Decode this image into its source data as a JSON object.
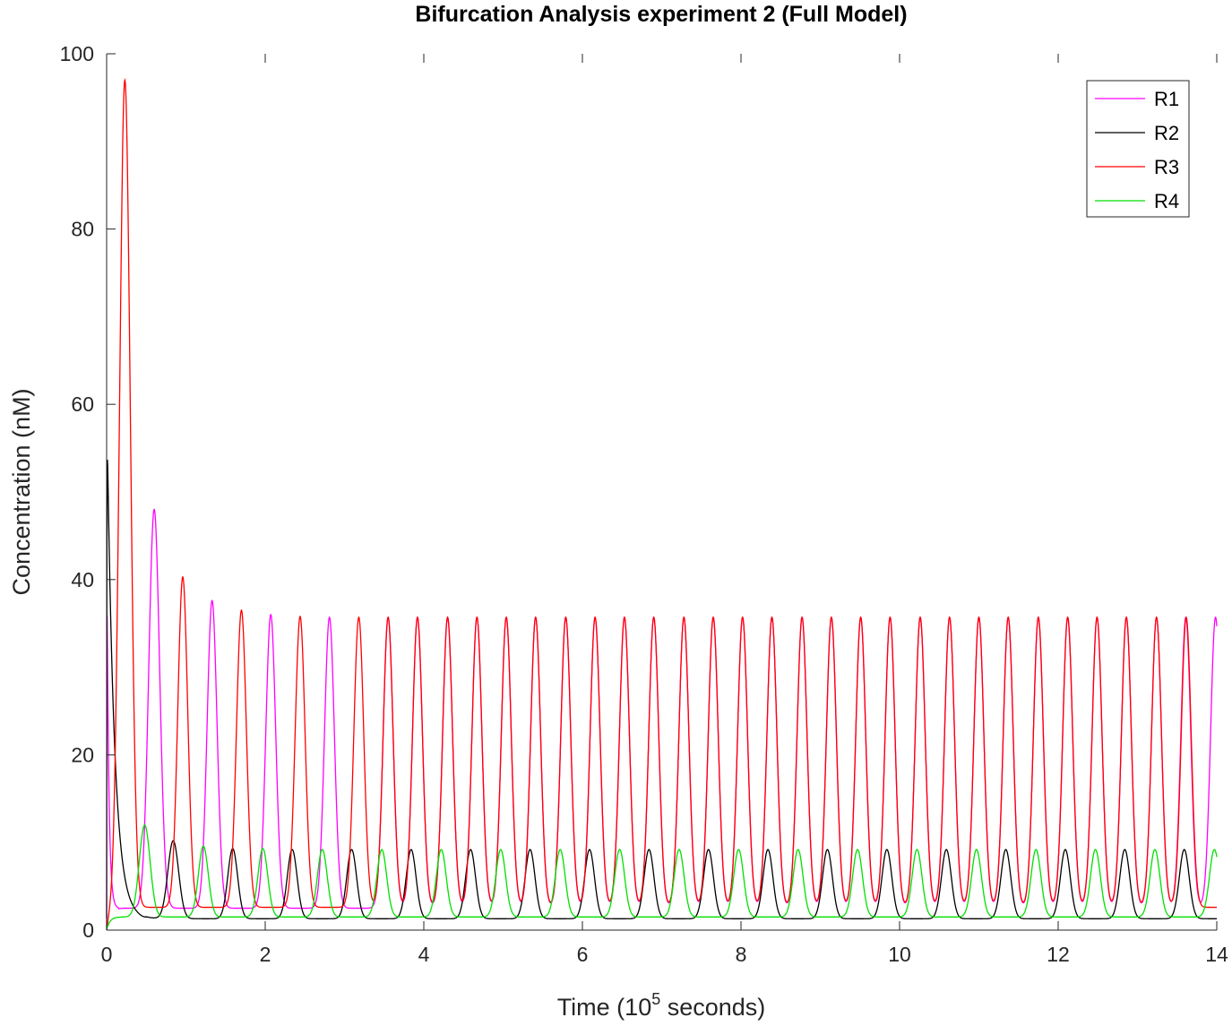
{
  "chart_data": {
    "type": "line",
    "title": "Bifurcation Analysis experiment 2 (Full Model)",
    "xlabel": {
      "pre": "Time (10",
      "sup": "5",
      "post": " seconds)"
    },
    "ylabel": "Concentration (nM)",
    "xlim": [
      0,
      14
    ],
    "ylim": [
      0,
      100
    ],
    "xticks": [
      0,
      2,
      4,
      6,
      8,
      10,
      12,
      14
    ],
    "yticks": [
      0,
      20,
      40,
      60,
      80,
      100
    ],
    "legend_position": "top-right",
    "period": 0.3745,
    "series": [
      {
        "name": "R1",
        "color": "#ff00ff",
        "peak_times": [
          0.6,
          1.33,
          2.07,
          2.81,
          3.55,
          3.92,
          4.3,
          4.67,
          5.04,
          5.41,
          5.79,
          6.16,
          6.53,
          6.9,
          7.28,
          7.65,
          8.02,
          8.39,
          8.77,
          9.14,
          9.51,
          9.88,
          10.26,
          10.63,
          11.0,
          11.37,
          11.75,
          12.12,
          12.49,
          12.86,
          13.24,
          13.61
        ],
        "peak_values": [
          48,
          37.6,
          36,
          35.7,
          35.7,
          35.7,
          35.7,
          35.7,
          35.7,
          35.7,
          35.7,
          35.7,
          35.7,
          35.7,
          35.7,
          35.7,
          35.7,
          35.7,
          35.7,
          35.7,
          35.7,
          35.7,
          35.7,
          35.7,
          35.7,
          35.7,
          35.7,
          35.7,
          35.7,
          35.7,
          35.7,
          35.7
        ],
        "trough": 2.5,
        "end_value": 27.5
      },
      {
        "name": "R2",
        "color": "#000000",
        "initial_peak": 62,
        "peak_times": [
          0.84,
          1.59,
          2.34,
          3.09,
          3.84,
          4.59,
          5.34,
          6.09,
          6.84,
          7.59,
          8.34,
          9.09,
          9.84,
          10.59,
          11.34,
          12.09,
          12.84,
          13.59
        ],
        "peak_values": [
          10.2,
          9.3,
          9.2,
          9.2,
          9.2,
          9.2,
          9.2,
          9.2,
          9.2,
          9.2,
          9.2,
          9.2,
          9.2,
          9.2,
          9.2,
          9.2,
          9.2,
          9.2
        ],
        "trough": 1.3,
        "end_value": 1.5
      },
      {
        "name": "R3",
        "color": "#ff0000",
        "peak_times": [
          0.23,
          0.96,
          1.7,
          2.44,
          3.18,
          3.55,
          3.92,
          4.3,
          4.67,
          5.04,
          5.41,
          5.79,
          6.16,
          6.53,
          6.9,
          7.28,
          7.65,
          8.02,
          8.39,
          8.77,
          9.14,
          9.51,
          9.88,
          10.26,
          10.63,
          11.0,
          11.37,
          11.75,
          12.12,
          12.49,
          12.86,
          13.24
        ],
        "peak_values": [
          97,
          40.3,
          36.5,
          35.8,
          35.7,
          35.7,
          35.7,
          35.7,
          35.7,
          35.7,
          35.7,
          35.7,
          35.7,
          35.7,
          35.7,
          35.7,
          35.7,
          35.7,
          35.7,
          35.7,
          35.7,
          35.7,
          35.7,
          35.7,
          35.7,
          35.7,
          35.7,
          35.7,
          35.7,
          35.7,
          35.7,
          35.7
        ],
        "trough": 2.6,
        "end_value": 3.3
      },
      {
        "name": "R4",
        "color": "#00e000",
        "peak_times": [
          0.48,
          1.22,
          1.97,
          2.72,
          3.47,
          4.22,
          4.97,
          5.72,
          6.47,
          7.22,
          7.97,
          8.72,
          9.47,
          10.22,
          10.97,
          11.72,
          12.47,
          13.22,
          13.97
        ],
        "peak_values": [
          12,
          9.6,
          9.3,
          9.2,
          9.2,
          9.2,
          9.2,
          9.2,
          9.2,
          9.2,
          9.2,
          9.2,
          9.2,
          9.2,
          9.2,
          9.2,
          9.2,
          9.2,
          9.2
        ],
        "trough": 1.5,
        "end_value": 8.8
      }
    ]
  }
}
